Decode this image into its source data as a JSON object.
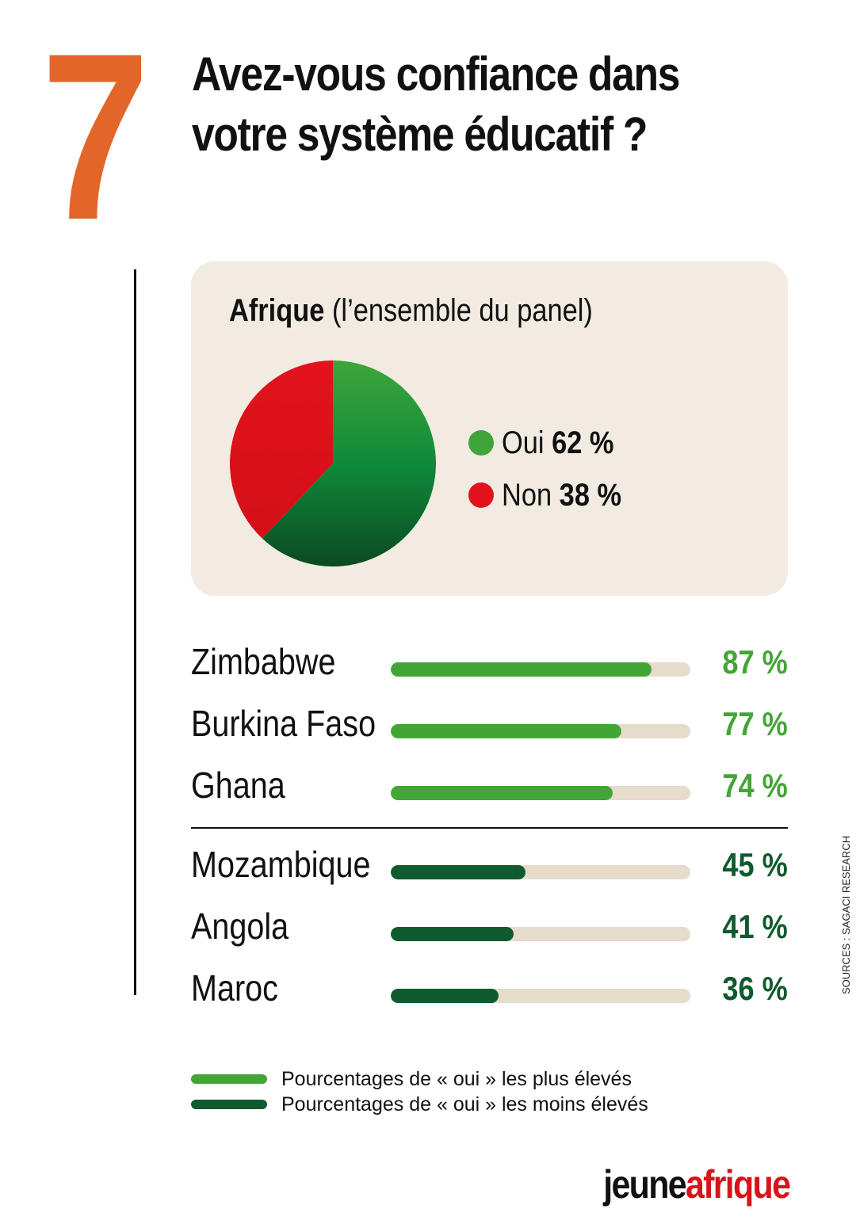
{
  "header": {
    "number": "7",
    "title": "Avez-vous confiance dans votre système éducatif ?"
  },
  "panel": {
    "title_bold": "Afrique",
    "title_rest": "(l’ensemble du panel)"
  },
  "chart_data": [
    {
      "type": "pie",
      "title": "Afrique (l’ensemble du panel)",
      "slices": [
        {
          "label": "Oui",
          "value": 62,
          "display": "62 %",
          "color": "#1f8a3b"
        },
        {
          "label": "Non",
          "value": 38,
          "display": "38 %",
          "color": "#e0131d"
        }
      ]
    },
    {
      "type": "bar",
      "orientation": "horizontal",
      "xlim": [
        0,
        100
      ],
      "groups": [
        {
          "legend": "Pourcentages de « oui » les plus élevés",
          "color": "#44a537",
          "rows": [
            {
              "country": "Zimbabwe",
              "value": 87,
              "display": "87 %"
            },
            {
              "country": "Burkina Faso",
              "value": 77,
              "display": "77 %"
            },
            {
              "country": "Ghana",
              "value": 74,
              "display": "74 %"
            }
          ]
        },
        {
          "legend": "Pourcentages de « oui » les moins élevés",
          "color": "#0f5a2e",
          "rows": [
            {
              "country": "Mozambique",
              "value": 45,
              "display": "45 %"
            },
            {
              "country": "Angola",
              "value": 41,
              "display": "41 %"
            },
            {
              "country": "Maroc",
              "value": 36,
              "display": "36 %"
            }
          ]
        }
      ]
    }
  ],
  "colors": {
    "accent_orange": "#e2652a",
    "panel_bg": "#f1ebe1",
    "track": "#e6dccb",
    "brand_red": "#d8141b"
  },
  "source": "SOURCES : SAGACI RESEARCH",
  "logo": {
    "part1": "jeune",
    "part2": "afrique"
  }
}
